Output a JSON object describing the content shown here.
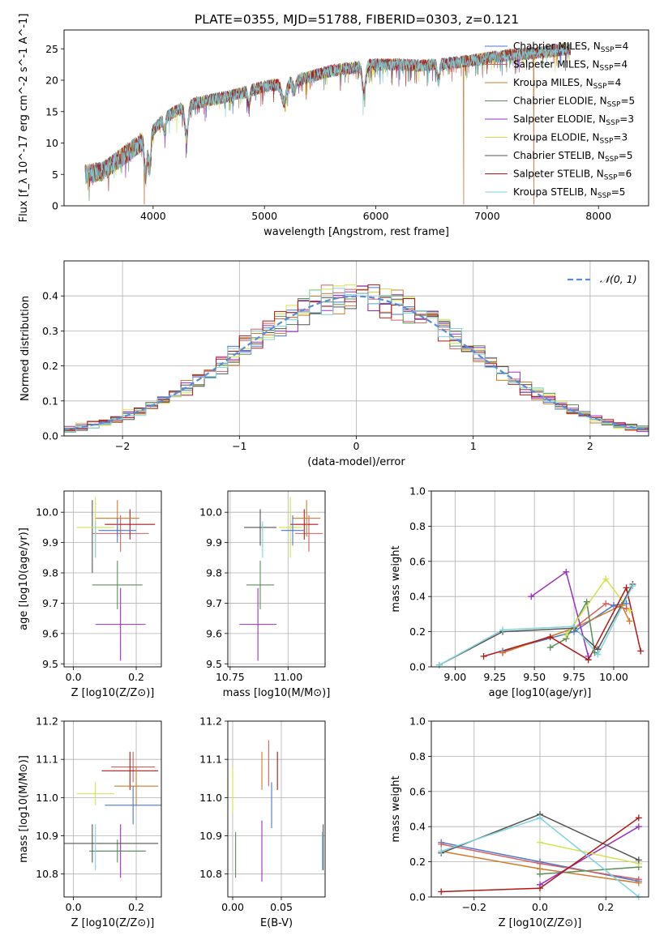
{
  "figure": {
    "title": "PLATE=0355, MJD=51788, FIBERID=0303, z=0.121"
  },
  "chart_data": [
    {
      "id": "spectrum",
      "type": "line",
      "xlabel": "wavelength [Angstrom, rest frame]",
      "ylabel": "Flux [f_λ 10^-17 erg cm^-2 s^-1 A^-1]",
      "xlim": [
        3200,
        8450
      ],
      "ylim": [
        0,
        28
      ],
      "xticks": [
        4000,
        5000,
        6000,
        7000,
        8000
      ],
      "yticks": [
        0,
        5,
        10,
        15,
        20,
        25
      ],
      "legend_position": "top-right",
      "grid": false,
      "continuum_anchors": [
        [
          3390,
          5
        ],
        [
          3550,
          5.5
        ],
        [
          3700,
          7.5
        ],
        [
          3850,
          9.5
        ],
        [
          3950,
          11
        ],
        [
          4100,
          14
        ],
        [
          4300,
          16
        ],
        [
          4500,
          16.8
        ],
        [
          4700,
          17.5
        ],
        [
          4900,
          18.5
        ],
        [
          5000,
          19
        ],
        [
          5200,
          19.5
        ],
        [
          5400,
          20.5
        ],
        [
          5600,
          21.5
        ],
        [
          5800,
          22
        ],
        [
          6000,
          22.5
        ],
        [
          6200,
          22.5
        ],
        [
          6400,
          22.3
        ],
        [
          6600,
          22.6
        ],
        [
          6800,
          23
        ],
        [
          7000,
          23.5
        ],
        [
          7200,
          24
        ],
        [
          7400,
          24.3
        ],
        [
          7600,
          24.7
        ],
        [
          7750,
          25
        ]
      ],
      "absorption_features": [
        {
          "x": 3933,
          "depth": 0.55,
          "width": 12
        },
        {
          "x": 3968,
          "depth": 0.45,
          "width": 12
        },
        {
          "x": 4102,
          "depth": 0.15,
          "width": 10
        },
        {
          "x": 4300,
          "depth": 0.3,
          "width": 15
        },
        {
          "x": 4861,
          "depth": 0.12,
          "width": 10
        },
        {
          "x": 5175,
          "depth": 0.15,
          "width": 20
        },
        {
          "x": 5270,
          "depth": 0.08,
          "width": 12
        },
        {
          "x": 5893,
          "depth": 0.2,
          "width": 14
        },
        {
          "x": 6563,
          "depth": 0.12,
          "width": 10
        }
      ],
      "spikes": [
        {
          "x": 6790,
          "min": 0,
          "series": [
            1,
            2
          ]
        },
        {
          "x": 7420,
          "min": 0,
          "series": [
            1,
            2
          ]
        },
        {
          "x": 3920,
          "min": 0,
          "series": [
            1,
            2
          ]
        }
      ],
      "series": [
        {
          "name": "Chabrier MILES, N_SSP=4",
          "color": "#4878cf"
        },
        {
          "name": "Salpeter MILES, N_SSP=4",
          "color": "#d65f5f"
        },
        {
          "name": "Kroupa MILES, N_SSP=4",
          "color": "#cf7a2a"
        },
        {
          "name": "Chabrier ELODIE, N_SSP=5",
          "color": "#5a8f5a"
        },
        {
          "name": "Salpeter ELODIE, N_SSP=3",
          "color": "#9b30c0"
        },
        {
          "name": "Kroupa ELODIE, N_SSP=3",
          "color": "#d4e04a"
        },
        {
          "name": "Chabrier STELIB, N_SSP=5",
          "color": "#555555"
        },
        {
          "name": "Salpeter STELIB, N_SSP=6",
          "color": "#b01818"
        },
        {
          "name": "Kroupa STELIB, N_SSP=5",
          "color": "#7fd3dc"
        }
      ]
    },
    {
      "id": "residuals",
      "type": "step-histogram",
      "xlabel": "(data-model)/error",
      "ylabel": "Normed distribution",
      "xlim": [
        -2.5,
        2.5
      ],
      "ylim": [
        0,
        0.5
      ],
      "xticks": [
        -2,
        -1,
        0,
        1,
        2
      ],
      "yticks": [
        0.0,
        0.1,
        0.2,
        0.3,
        0.4
      ],
      "grid": true,
      "bin_width": 0.1,
      "reference_curve": {
        "name": "𝒩(0, 1)",
        "color": "#5b8bd6",
        "mean": 0,
        "sigma": 1
      },
      "legend_position": "top-right"
    },
    {
      "id": "age_vs_Z",
      "type": "errorbar",
      "xlabel": "Z [log10(Z/Z⊙)]",
      "ylabel": "age [log10(age/yr)]",
      "xlim": [
        -0.03,
        0.28
      ],
      "ylim": [
        9.49,
        10.07
      ],
      "xticks": [
        0.0,
        0.2
      ],
      "yticks": [
        9.5,
        9.6,
        9.7,
        9.8,
        9.9,
        10.0
      ],
      "grid": true,
      "points": [
        {
          "x": 0.15,
          "y": 9.63,
          "xerr": 0.08,
          "yerr": 0.12,
          "color": "#9b30c0"
        },
        {
          "x": 0.14,
          "y": 9.76,
          "xerr": 0.08,
          "yerr": 0.08,
          "color": "#5a8f5a"
        },
        {
          "x": 0.06,
          "y": 9.92,
          "xerr": 0.0,
          "yerr": 0.12,
          "color": "#555555"
        },
        {
          "x": 0.07,
          "y": 9.95,
          "xerr": 0.06,
          "yerr": 0.1,
          "color": "#d4e04a"
        },
        {
          "x": 0.15,
          "y": 9.93,
          "xerr": 0.09,
          "yerr": 0.06,
          "color": "#d65f5f"
        },
        {
          "x": 0.18,
          "y": 9.96,
          "xerr": 0.08,
          "yerr": 0.05,
          "color": "#b01818"
        },
        {
          "x": 0.14,
          "y": 9.98,
          "xerr": 0.07,
          "yerr": 0.06,
          "color": "#cf7a2a"
        },
        {
          "x": 0.14,
          "y": 9.94,
          "xerr": 0.06,
          "yerr": 0.04,
          "color": "#4878cf"
        },
        {
          "x": 0.07,
          "y": 9.91,
          "xerr": 0.0,
          "yerr": 0.06,
          "color": "#7fd3dc"
        }
      ]
    },
    {
      "id": "age_vs_mass",
      "type": "errorbar",
      "xlabel": "mass [log10(M/M⊙)]",
      "ylabel": "",
      "xlim": [
        10.74,
        11.16
      ],
      "ylim": [
        9.49,
        10.07
      ],
      "xticks": [
        10.75,
        11.0
      ],
      "yticks": [
        9.5,
        9.6,
        9.7,
        9.8,
        9.9,
        10.0
      ],
      "grid": true,
      "points": [
        {
          "x": 10.87,
          "y": 9.63,
          "xerr": 0.08,
          "yerr": 0.12,
          "color": "#9b30c0"
        },
        {
          "x": 10.88,
          "y": 9.76,
          "xerr": 0.06,
          "yerr": 0.08,
          "color": "#5a8f5a"
        },
        {
          "x": 10.88,
          "y": 9.95,
          "xerr": 0.07,
          "yerr": 0.06,
          "color": "#555555"
        },
        {
          "x": 11.01,
          "y": 9.95,
          "xerr": 0.05,
          "yerr": 0.1,
          "color": "#d4e04a"
        },
        {
          "x": 11.09,
          "y": 9.93,
          "xerr": 0.06,
          "yerr": 0.06,
          "color": "#d65f5f"
        },
        {
          "x": 11.07,
          "y": 9.96,
          "xerr": 0.06,
          "yerr": 0.05,
          "color": "#b01818"
        },
        {
          "x": 11.08,
          "y": 9.98,
          "xerr": 0.06,
          "yerr": 0.06,
          "color": "#cf7a2a"
        },
        {
          "x": 11.02,
          "y": 9.94,
          "xerr": 0.05,
          "yerr": 0.05,
          "color": "#4878cf"
        },
        {
          "x": 10.89,
          "y": 9.91,
          "xerr": 0.0,
          "yerr": 0.06,
          "color": "#7fd3dc"
        }
      ]
    },
    {
      "id": "weight_vs_age",
      "type": "line",
      "xlabel": "age [log10(age/yr)]",
      "ylabel": "mass weight",
      "xlim": [
        8.85,
        10.22
      ],
      "ylim": [
        0,
        1.0
      ],
      "xticks": [
        9.0,
        9.25,
        9.5,
        9.75,
        10.0
      ],
      "yticks": [
        0.0,
        0.2,
        0.4,
        0.6,
        0.8,
        1.0
      ],
      "grid": true,
      "series": [
        {
          "name": "Chabrier MILES",
          "color": "#4878cf",
          "points": [
            [
              9.3,
              0.09
            ],
            [
              9.75,
              0.2
            ],
            [
              10.0,
              0.35
            ],
            [
              10.08,
              0.36
            ]
          ]
        },
        {
          "name": "Salpeter MILES",
          "color": "#d65f5f",
          "points": [
            [
              9.3,
              0.08
            ],
            [
              9.75,
              0.22
            ],
            [
              9.95,
              0.36
            ],
            [
              10.08,
              0.33
            ]
          ]
        },
        {
          "name": "Kroupa MILES",
          "color": "#cf7a2a",
          "points": [
            [
              9.3,
              0.08
            ],
            [
              9.75,
              0.22
            ],
            [
              10.05,
              0.35
            ],
            [
              10.1,
              0.26
            ]
          ]
        },
        {
          "name": "Chabrier ELODIE",
          "color": "#5a8f5a",
          "points": [
            [
              9.6,
              0.11
            ],
            [
              9.7,
              0.16
            ],
            [
              9.83,
              0.37
            ],
            [
              9.88,
              0.08
            ]
          ]
        },
        {
          "name": "Salpeter ELODIE",
          "color": "#9b30c0",
          "points": [
            [
              9.48,
              0.4
            ],
            [
              9.7,
              0.54
            ],
            [
              9.84,
              0.06
            ]
          ]
        },
        {
          "name": "Kroupa ELODIE",
          "color": "#d4e04a",
          "points": [
            [
              9.7,
              0.18
            ],
            [
              9.95,
              0.5
            ],
            [
              10.1,
              0.32
            ]
          ]
        },
        {
          "name": "Chabrier STELIB",
          "color": "#555555",
          "points": [
            [
              8.9,
              0.01
            ],
            [
              9.3,
              0.2
            ],
            [
              9.75,
              0.22
            ],
            [
              9.9,
              0.1
            ],
            [
              10.12,
              0.47
            ]
          ]
        },
        {
          "name": "Salpeter STELIB",
          "color": "#b01818",
          "points": [
            [
              9.18,
              0.06
            ],
            [
              9.6,
              0.17
            ],
            [
              9.84,
              0.04
            ],
            [
              10.08,
              0.45
            ],
            [
              10.17,
              0.09
            ]
          ]
        },
        {
          "name": "Kroupa STELIB",
          "color": "#7fd3dc",
          "points": [
            [
              8.9,
              0.01
            ],
            [
              9.3,
              0.21
            ],
            [
              9.75,
              0.23
            ],
            [
              9.9,
              0.07
            ],
            [
              10.12,
              0.46
            ]
          ]
        }
      ]
    },
    {
      "id": "mass_vs_Z",
      "type": "errorbar",
      "xlabel": "Z [log10(Z/Z⊙)]",
      "ylabel": "mass [log10(M/M⊙)]",
      "xlim": [
        -0.03,
        0.28
      ],
      "ylim": [
        10.74,
        11.2
      ],
      "xticks": [
        0.0,
        0.2
      ],
      "yticks": [
        10.8,
        10.9,
        11.0,
        11.1,
        11.2
      ],
      "grid": true,
      "points": [
        {
          "x": 0.15,
          "y": 10.86,
          "xerr": 0.08,
          "yerr": 0.07,
          "color": "#9b30c0"
        },
        {
          "x": 0.14,
          "y": 10.86,
          "xerr": 0.09,
          "yerr": 0.03,
          "color": "#5a8f5a"
        },
        {
          "x": 0.06,
          "y": 10.88,
          "xerr": 0.0,
          "yerr": 0.05,
          "color": "#555555"
        },
        {
          "x": 0.1,
          "y": 10.88,
          "xerr": 0.17,
          "yerr": 0.0,
          "color": "#555555"
        },
        {
          "x": 0.07,
          "y": 10.87,
          "xerr": 0.0,
          "yerr": 0.06,
          "color": "#7fd3dc"
        },
        {
          "x": 0.07,
          "y": 11.01,
          "xerr": 0.06,
          "yerr": 0.03,
          "color": "#d4e04a"
        },
        {
          "x": 0.19,
          "y": 11.08,
          "xerr": 0.07,
          "yerr": 0.04,
          "color": "#d65f5f"
        },
        {
          "x": 0.18,
          "y": 11.07,
          "xerr": 0.09,
          "yerr": 0.05,
          "color": "#b01818"
        },
        {
          "x": 0.2,
          "y": 11.03,
          "xerr": 0.07,
          "yerr": 0.05,
          "color": "#cf7a2a"
        },
        {
          "x": 0.19,
          "y": 10.98,
          "xerr": 0.09,
          "yerr": 0.05,
          "color": "#4878cf"
        }
      ]
    },
    {
      "id": "mass_vs_ebv",
      "type": "errorbar",
      "xlabel": "E(B-V)",
      "ylabel": "",
      "xlim": [
        -0.005,
        0.095
      ],
      "ylim": [
        10.74,
        11.2
      ],
      "xticks": [
        0.0,
        0.05
      ],
      "yticks": [
        10.8,
        10.9,
        11.0,
        11.1,
        11.2
      ],
      "grid": true,
      "points": [
        {
          "x": 0.003,
          "y": 10.85,
          "xerr": 0,
          "yerr": 0.06,
          "color": "#5a8f5a"
        },
        {
          "x": 0.0,
          "y": 11.02,
          "xerr": 0,
          "yerr": 0.06,
          "color": "#d4e04a"
        },
        {
          "x": 0.03,
          "y": 10.86,
          "xerr": 0,
          "yerr": 0.08,
          "color": "#9b30c0"
        },
        {
          "x": 0.03,
          "y": 11.07,
          "xerr": 0,
          "yerr": 0.05,
          "color": "#cf7a2a"
        },
        {
          "x": 0.037,
          "y": 11.09,
          "xerr": 0,
          "yerr": 0.06,
          "color": "#d65f5f"
        },
        {
          "x": 0.04,
          "y": 10.98,
          "xerr": 0,
          "yerr": 0.06,
          "color": "#4878cf"
        },
        {
          "x": 0.046,
          "y": 11.07,
          "xerr": 0,
          "yerr": 0.05,
          "color": "#b01818"
        },
        {
          "x": 0.093,
          "y": 10.87,
          "xerr": 0,
          "yerr": 0.06,
          "color": "#555555"
        },
        {
          "x": 0.092,
          "y": 10.86,
          "xerr": 0,
          "yerr": 0.05,
          "color": "#7fd3dc"
        }
      ]
    },
    {
      "id": "weight_vs_Z",
      "type": "line",
      "xlabel": "Z [log10(Z/Z⊙)]",
      "ylabel": "mass weight",
      "xlim": [
        -0.33,
        0.33
      ],
      "ylim": [
        0,
        1.0
      ],
      "xticks": [
        -0.2,
        0.0,
        0.2
      ],
      "yticks": [
        0.0,
        0.2,
        0.4,
        0.6,
        0.8,
        1.0
      ],
      "grid": true,
      "series": [
        {
          "name": "Chabrier MILES",
          "color": "#4878cf",
          "points": [
            [
              -0.3,
              0.31
            ],
            [
              0.0,
              0.2
            ],
            [
              0.3,
              0.09
            ]
          ]
        },
        {
          "name": "Salpeter MILES",
          "color": "#d65f5f",
          "points": [
            [
              -0.3,
              0.3
            ],
            [
              0.0,
              0.19
            ],
            [
              0.3,
              0.1
            ]
          ]
        },
        {
          "name": "Kroupa MILES",
          "color": "#cf7a2a",
          "points": [
            [
              -0.3,
              0.26
            ],
            [
              0.0,
              0.16
            ],
            [
              0.3,
              0.08
            ]
          ]
        },
        {
          "name": "Chabrier ELODIE",
          "color": "#5a8f5a",
          "points": [
            [
              0.0,
              0.13
            ],
            [
              0.3,
              0.17
            ]
          ]
        },
        {
          "name": "Salpeter ELODIE",
          "color": "#9b30c0",
          "points": [
            [
              0.0,
              0.07
            ],
            [
              0.3,
              0.4
            ]
          ]
        },
        {
          "name": "Kroupa ELODIE",
          "color": "#d4e04a",
          "points": [
            [
              0.0,
              0.31
            ],
            [
              0.3,
              0.19
            ]
          ]
        },
        {
          "name": "Chabrier STELIB",
          "color": "#555555",
          "points": [
            [
              -0.3,
              0.25
            ],
            [
              0.0,
              0.47
            ],
            [
              0.3,
              0.21
            ]
          ]
        },
        {
          "name": "Salpeter STELIB",
          "color": "#b01818",
          "points": [
            [
              -0.3,
              0.03
            ],
            [
              0.0,
              0.05
            ],
            [
              0.3,
              0.45
            ]
          ]
        },
        {
          "name": "Kroupa STELIB",
          "color": "#7fd3dc",
          "points": [
            [
              -0.3,
              0.26
            ],
            [
              0.0,
              0.45
            ],
            [
              0.3,
              0.0
            ]
          ]
        }
      ]
    }
  ]
}
